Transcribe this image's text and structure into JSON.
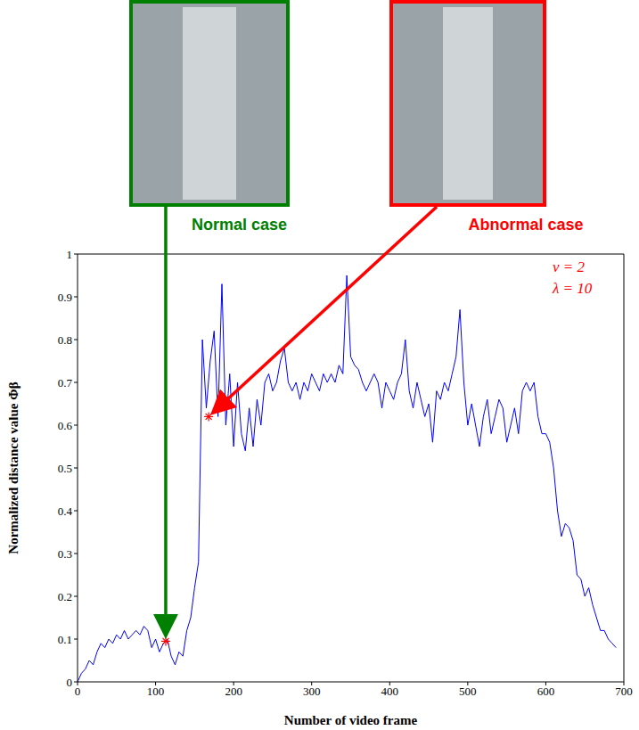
{
  "chart_data": {
    "type": "line",
    "x_label": "Number of video frame",
    "y_label": "Normalized distance value  Φβ",
    "color": "#0000ff",
    "x": [
      0,
      5,
      10,
      15,
      20,
      25,
      30,
      35,
      40,
      45,
      50,
      55,
      60,
      65,
      70,
      75,
      80,
      85,
      90,
      95,
      100,
      105,
      110,
      115,
      120,
      125,
      130,
      135,
      140,
      145,
      150,
      155,
      160,
      165,
      170,
      175,
      180,
      185,
      190,
      195,
      200,
      205,
      210,
      215,
      220,
      225,
      230,
      235,
      240,
      245,
      250,
      255,
      260,
      265,
      270,
      275,
      280,
      285,
      290,
      295,
      300,
      305,
      310,
      315,
      320,
      325,
      330,
      335,
      340,
      345,
      350,
      355,
      360,
      365,
      370,
      375,
      380,
      385,
      390,
      395,
      400,
      405,
      410,
      415,
      420,
      425,
      430,
      435,
      440,
      445,
      450,
      455,
      460,
      465,
      470,
      475,
      480,
      485,
      490,
      495,
      500,
      505,
      510,
      515,
      520,
      525,
      530,
      535,
      540,
      545,
      550,
      555,
      560,
      565,
      570,
      575,
      580,
      585,
      590,
      595,
      600,
      605,
      610,
      615,
      620,
      625,
      630,
      635,
      640,
      645,
      650,
      655,
      660,
      665,
      670,
      675,
      680,
      685,
      690
    ],
    "values": [
      0,
      0.02,
      0.03,
      0.05,
      0.04,
      0.07,
      0.09,
      0.08,
      0.1,
      0.09,
      0.11,
      0.1,
      0.12,
      0.1,
      0.11,
      0.12,
      0.11,
      0.13,
      0.12,
      0.08,
      0.1,
      0.07,
      0.09,
      0.1,
      0.06,
      0.04,
      0.07,
      0.06,
      0.12,
      0.15,
      0.22,
      0.28,
      0.8,
      0.64,
      0.75,
      0.82,
      0.62,
      0.93,
      0.6,
      0.72,
      0.55,
      0.7,
      0.58,
      0.54,
      0.64,
      0.55,
      0.66,
      0.6,
      0.7,
      0.72,
      0.68,
      0.7,
      0.75,
      0.78,
      0.7,
      0.68,
      0.7,
      0.66,
      0.7,
      0.68,
      0.72,
      0.7,
      0.68,
      0.72,
      0.7,
      0.72,
      0.7,
      0.74,
      0.72,
      0.95,
      0.76,
      0.74,
      0.73,
      0.7,
      0.68,
      0.7,
      0.72,
      0.7,
      0.64,
      0.7,
      0.68,
      0.66,
      0.7,
      0.72,
      0.8,
      0.68,
      0.64,
      0.7,
      0.66,
      0.62,
      0.65,
      0.56,
      0.68,
      0.66,
      0.7,
      0.68,
      0.72,
      0.76,
      0.87,
      0.7,
      0.6,
      0.65,
      0.6,
      0.55,
      0.62,
      0.66,
      0.58,
      0.62,
      0.66,
      0.64,
      0.56,
      0.6,
      0.64,
      0.58,
      0.68,
      0.7,
      0.68,
      0.7,
      0.62,
      0.58,
      0.58,
      0.56,
      0.5,
      0.4,
      0.34,
      0.37,
      0.36,
      0.33,
      0.25,
      0.24,
      0.2,
      0.22,
      0.18,
      0.15,
      0.12,
      0.12,
      0.1,
      0.09,
      0.08
    ],
    "xlim": [
      0,
      700
    ],
    "ylim": [
      0,
      1
    ],
    "xticks": [
      0,
      100,
      200,
      300,
      400,
      500,
      600,
      700
    ],
    "yticks": [
      0,
      0.1,
      0.2,
      0.3,
      0.4,
      0.5,
      0.6,
      0.7,
      0.8,
      0.9,
      1
    ],
    "marker": "star",
    "annotations": [
      "ν = 2",
      "λ = 10"
    ],
    "highlights": [
      {
        "x": 113,
        "y": 0.095,
        "label": "Normal case",
        "color": "#008000"
      },
      {
        "x": 168,
        "y": 0.62,
        "label": "Abnormal case",
        "color": "#ff0000"
      }
    ]
  }
}
